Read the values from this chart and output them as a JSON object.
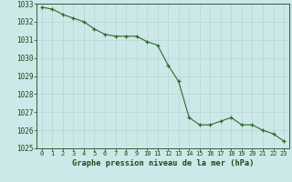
{
  "x": [
    0,
    1,
    2,
    3,
    4,
    5,
    6,
    7,
    8,
    9,
    10,
    11,
    12,
    13,
    14,
    15,
    16,
    17,
    18,
    19,
    20,
    21,
    22,
    23
  ],
  "y": [
    1032.8,
    1032.7,
    1032.4,
    1032.2,
    1032.0,
    1031.6,
    1031.3,
    1031.2,
    1031.2,
    1031.2,
    1030.9,
    1030.7,
    1029.6,
    1028.7,
    1026.7,
    1026.3,
    1026.3,
    1026.5,
    1026.7,
    1026.3,
    1026.3,
    1026.0,
    1025.8,
    1025.4
  ],
  "ylim": [
    1025,
    1033
  ],
  "xlim": [
    -0.5,
    23.5
  ],
  "yticks": [
    1025,
    1026,
    1027,
    1028,
    1029,
    1030,
    1031,
    1032,
    1033
  ],
  "xticks": [
    0,
    1,
    2,
    3,
    4,
    5,
    6,
    7,
    8,
    9,
    10,
    11,
    12,
    13,
    14,
    15,
    16,
    17,
    18,
    19,
    20,
    21,
    22,
    23
  ],
  "line_color": "#2d6a2d",
  "marker_color": "#2d6a2d",
  "bg_color": "#cce8e8",
  "xlabel": "Graphe pression niveau de la mer (hPa)",
  "tick_color": "#1a4a1a",
  "grid_color": "#b8d4d4"
}
